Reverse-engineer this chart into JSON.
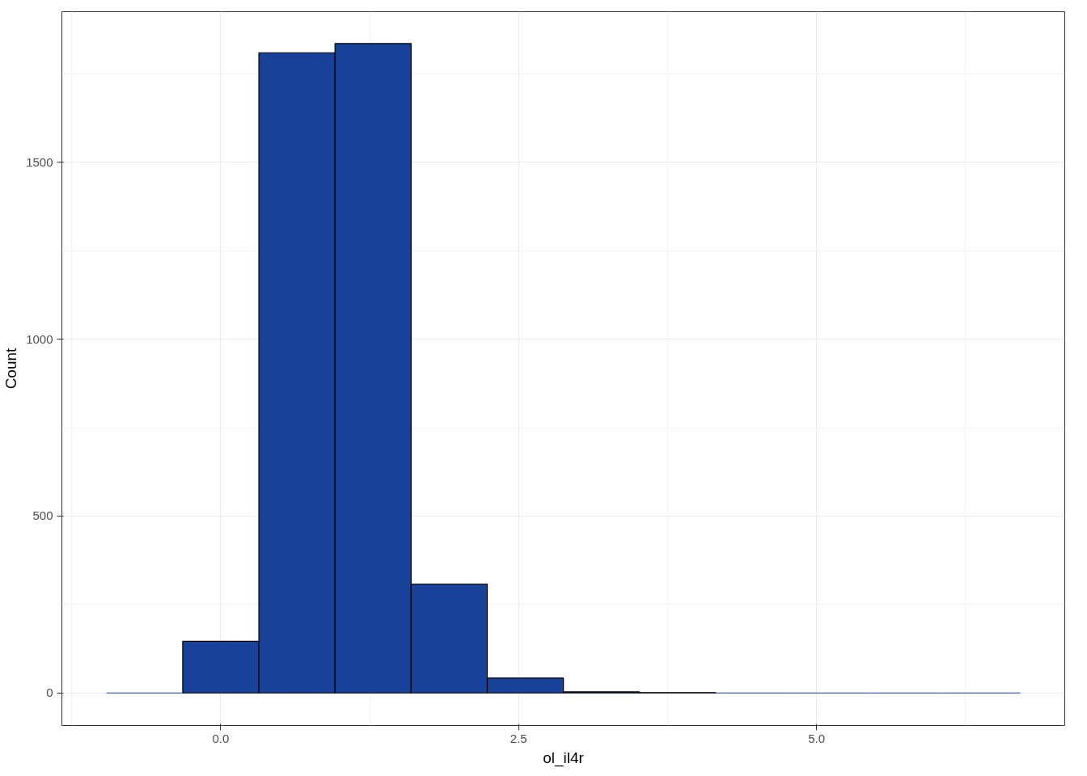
{
  "chart_data": {
    "type": "histogram",
    "xlabel": "ol_il4r",
    "ylabel": "Count",
    "bins": [
      -0.958,
      -0.319,
      0.32,
      0.959,
      1.598,
      2.237,
      2.876,
      3.515,
      4.154,
      4.793,
      5.432,
      6.071,
      6.71
    ],
    "values": [
      0,
      146,
      1810,
      1836,
      308,
      42,
      3,
      1,
      0,
      0,
      0,
      0
    ],
    "color": "#18429a",
    "xlim": [
      -1.333,
      7.083
    ],
    "ylim": [
      -92,
      1926
    ],
    "xticks": [
      {
        "value": 0,
        "label": "0.0"
      },
      {
        "value": 2.5,
        "label": "2.5"
      },
      {
        "value": 5,
        "label": "5.0"
      }
    ],
    "yticks": [
      0,
      500,
      1000,
      1500
    ],
    "grid": true
  }
}
